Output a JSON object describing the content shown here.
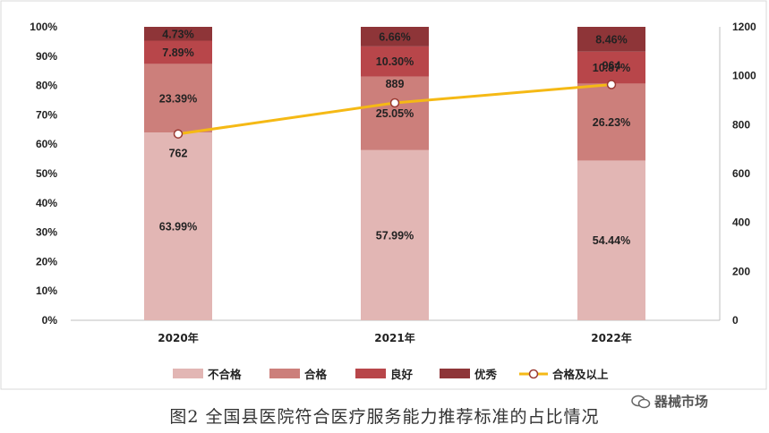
{
  "chart_data": {
    "type": "bar",
    "stacked": true,
    "categories": [
      "2020年",
      "2021年",
      "2022年"
    ],
    "series": [
      {
        "name": "不合格",
        "values": [
          63.99,
          57.99,
          54.44
        ],
        "labels": [
          "63.99%",
          "57.99%",
          "54.44%"
        ],
        "color": "#E2B6B4"
      },
      {
        "name": "合格",
        "values": [
          23.39,
          25.05,
          26.23
        ],
        "labels": [
          "23.39%",
          "25.05%",
          "26.23%"
        ],
        "color": "#CC7F7B"
      },
      {
        "name": "良好",
        "values": [
          7.89,
          10.3,
          10.87
        ],
        "labels": [
          "7.89%",
          "10.30%",
          "10.87%"
        ],
        "color": "#B8464A"
      },
      {
        "name": "优秀",
        "values": [
          4.73,
          6.66,
          8.46
        ],
        "labels": [
          "4.73%",
          "6.66%",
          "8.46%"
        ],
        "color": "#8E3538"
      }
    ],
    "line_series": {
      "name": "合格及以上",
      "values": [
        762,
        889,
        964
      ],
      "labels": [
        "762",
        "889",
        "964"
      ],
      "axis": "right",
      "color": "#F5B915"
    },
    "y_left": {
      "ylim": [
        0,
        100
      ],
      "ticks": [
        "0%",
        "10%",
        "20%",
        "30%",
        "40%",
        "50%",
        "60%",
        "70%",
        "80%",
        "90%",
        "100%"
      ]
    },
    "y_right": {
      "ylim": [
        0,
        1200
      ],
      "ticks": [
        "0",
        "200",
        "400",
        "600",
        "800",
        "1000",
        "1200"
      ]
    },
    "legend_position": "bottom",
    "grid": false
  },
  "caption": "图2 全国县医院符合医疗服务能力推荐标准的占比情况",
  "watermark": "器械市场"
}
